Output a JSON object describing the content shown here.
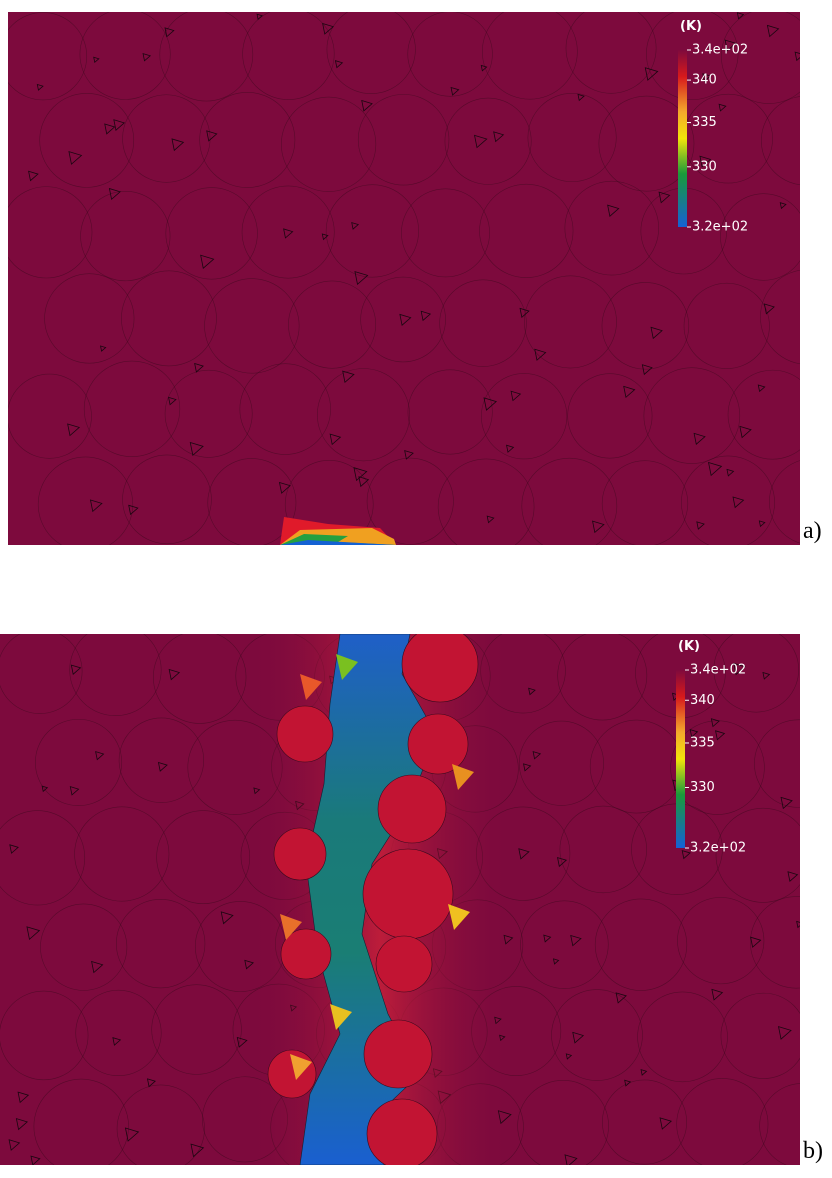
{
  "panels": [
    {
      "label": "a)",
      "colorbar": {
        "title": "(K)",
        "labels": [
          "3.4e+02",
          "340",
          "335",
          "330",
          "3.2e+02"
        ]
      }
    },
    {
      "label": "b)",
      "colorbar": {
        "title": "(K)",
        "labels": [
          "3.4e+02",
          "340",
          "335",
          "330",
          "3.2e+02"
        ]
      }
    }
  ]
}
